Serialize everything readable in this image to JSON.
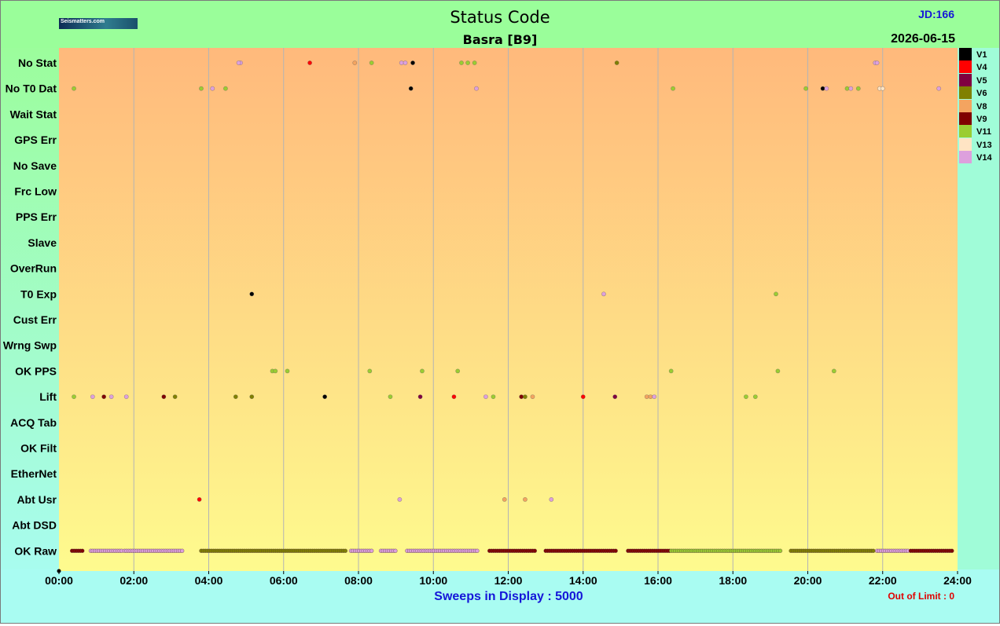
{
  "header": {
    "title": "Status Code",
    "subtitle": "Basra  [B9]",
    "jd": "JD:166",
    "date": "2026-06-15",
    "logo_text": "Seismatters.com"
  },
  "footer": {
    "sweeps": "Sweeps in Display : 5000",
    "out_of_limit": "Out of Limit : 0"
  },
  "colors": {
    "plot_top": "#ffb97c",
    "plot_bottom": "#fefb8e",
    "grid": "#b4b4b4",
    "header_bg": "#9afe9a",
    "footer_bg": "#a9fcf2"
  },
  "chart_data": {
    "type": "scatter",
    "title": "Status Code",
    "subtitle": "Basra  [B9]",
    "x_unit": "hours",
    "xlim": [
      0,
      24
    ],
    "xticks": [
      "00:00",
      "02:00",
      "04:00",
      "06:00",
      "08:00",
      "10:00",
      "12:00",
      "14:00",
      "16:00",
      "18:00",
      "20:00",
      "22:00",
      "24:00"
    ],
    "grid": true,
    "legend": "right",
    "categories": [
      "No Stat",
      "No T0 Dat",
      "Wait Stat",
      "GPS Err",
      "No Save",
      "Frc Low",
      "PPS Err",
      "Slave",
      "OverRun",
      "T0 Exp",
      "Cust Err",
      "Wrng Swp",
      "OK PPS",
      "Lift",
      "ACQ Tab",
      "OK Filt",
      "EtherNet",
      "Abt Usr",
      "Abt DSD",
      "OK Raw"
    ],
    "series": [
      {
        "name": "V1",
        "color": "#000000"
      },
      {
        "name": "V4",
        "color": "#ff0000"
      },
      {
        "name": "V5",
        "color": "#800040"
      },
      {
        "name": "V6",
        "color": "#808000"
      },
      {
        "name": "V8",
        "color": "#f4a460"
      },
      {
        "name": "V9",
        "color": "#800000"
      },
      {
        "name": "V11",
        "color": "#9acd32"
      },
      {
        "name": "V13",
        "color": "#ffe4c4"
      },
      {
        "name": "V14",
        "color": "#dda0dd"
      }
    ],
    "points": [
      {
        "cat": "No Stat",
        "t": 4.85,
        "s": "V14"
      },
      {
        "cat": "No Stat",
        "t": 4.8,
        "s": "V14"
      },
      {
        "cat": "No Stat",
        "t": 6.7,
        "s": "V4"
      },
      {
        "cat": "No Stat",
        "t": 7.9,
        "s": "V8"
      },
      {
        "cat": "No Stat",
        "t": 8.35,
        "s": "V11"
      },
      {
        "cat": "No Stat",
        "t": 9.15,
        "s": "V14"
      },
      {
        "cat": "No Stat",
        "t": 9.25,
        "s": "V14"
      },
      {
        "cat": "No Stat",
        "t": 9.45,
        "s": "V1"
      },
      {
        "cat": "No Stat",
        "t": 10.75,
        "s": "V11"
      },
      {
        "cat": "No Stat",
        "t": 10.92,
        "s": "V11"
      },
      {
        "cat": "No Stat",
        "t": 11.1,
        "s": "V11"
      },
      {
        "cat": "No Stat",
        "t": 14.9,
        "s": "V6"
      },
      {
        "cat": "No Stat",
        "t": 21.8,
        "s": "V14"
      },
      {
        "cat": "No Stat",
        "t": 21.85,
        "s": "V14"
      },
      {
        "cat": "No T0 Dat",
        "t": 0.4,
        "s": "V11"
      },
      {
        "cat": "No T0 Dat",
        "t": 3.8,
        "s": "V11"
      },
      {
        "cat": "No T0 Dat",
        "t": 4.1,
        "s": "V14"
      },
      {
        "cat": "No T0 Dat",
        "t": 4.45,
        "s": "V11"
      },
      {
        "cat": "No T0 Dat",
        "t": 9.4,
        "s": "V1"
      },
      {
        "cat": "No T0 Dat",
        "t": 11.15,
        "s": "V14"
      },
      {
        "cat": "No T0 Dat",
        "t": 16.4,
        "s": "V11"
      },
      {
        "cat": "No T0 Dat",
        "t": 19.95,
        "s": "V11"
      },
      {
        "cat": "No T0 Dat",
        "t": 20.4,
        "s": "V1"
      },
      {
        "cat": "No T0 Dat",
        "t": 20.5,
        "s": "V14"
      },
      {
        "cat": "No T0 Dat",
        "t": 21.05,
        "s": "V11"
      },
      {
        "cat": "No T0 Dat",
        "t": 21.15,
        "s": "V14"
      },
      {
        "cat": "No T0 Dat",
        "t": 21.35,
        "s": "V11"
      },
      {
        "cat": "No T0 Dat",
        "t": 21.92,
        "s": "V13"
      },
      {
        "cat": "No T0 Dat",
        "t": 22.0,
        "s": "V13"
      },
      {
        "cat": "No T0 Dat",
        "t": 23.5,
        "s": "V14"
      },
      {
        "cat": "T0 Exp",
        "t": 5.15,
        "s": "V1"
      },
      {
        "cat": "T0 Exp",
        "t": 14.55,
        "s": "V14"
      },
      {
        "cat": "T0 Exp",
        "t": 19.15,
        "s": "V11"
      },
      {
        "cat": "OK PPS",
        "t": 5.7,
        "s": "V11"
      },
      {
        "cat": "OK PPS",
        "t": 5.78,
        "s": "V11"
      },
      {
        "cat": "OK PPS",
        "t": 6.1,
        "s": "V11"
      },
      {
        "cat": "OK PPS",
        "t": 8.3,
        "s": "V11"
      },
      {
        "cat": "OK PPS",
        "t": 9.7,
        "s": "V11"
      },
      {
        "cat": "OK PPS",
        "t": 10.65,
        "s": "V11"
      },
      {
        "cat": "OK PPS",
        "t": 16.35,
        "s": "V11"
      },
      {
        "cat": "OK PPS",
        "t": 19.2,
        "s": "V11"
      },
      {
        "cat": "OK PPS",
        "t": 20.7,
        "s": "V11"
      },
      {
        "cat": "Lift",
        "t": 0.4,
        "s": "V11"
      },
      {
        "cat": "Lift",
        "t": 0.9,
        "s": "V14"
      },
      {
        "cat": "Lift",
        "t": 1.2,
        "s": "V9"
      },
      {
        "cat": "Lift",
        "t": 1.4,
        "s": "V14"
      },
      {
        "cat": "Lift",
        "t": 1.8,
        "s": "V14"
      },
      {
        "cat": "Lift",
        "t": 2.8,
        "s": "V9"
      },
      {
        "cat": "Lift",
        "t": 3.1,
        "s": "V6"
      },
      {
        "cat": "Lift",
        "t": 4.72,
        "s": "V6"
      },
      {
        "cat": "Lift",
        "t": 5.15,
        "s": "V6"
      },
      {
        "cat": "Lift",
        "t": 7.1,
        "s": "V1"
      },
      {
        "cat": "Lift",
        "t": 8.85,
        "s": "V11"
      },
      {
        "cat": "Lift",
        "t": 9.65,
        "s": "V5"
      },
      {
        "cat": "Lift",
        "t": 10.55,
        "s": "V4"
      },
      {
        "cat": "Lift",
        "t": 11.4,
        "s": "V14"
      },
      {
        "cat": "Lift",
        "t": 11.6,
        "s": "V11"
      },
      {
        "cat": "Lift",
        "t": 12.35,
        "s": "V9"
      },
      {
        "cat": "Lift",
        "t": 12.45,
        "s": "V6"
      },
      {
        "cat": "Lift",
        "t": 12.65,
        "s": "V8"
      },
      {
        "cat": "Lift",
        "t": 14.0,
        "s": "V4"
      },
      {
        "cat": "Lift",
        "t": 14.85,
        "s": "V5"
      },
      {
        "cat": "Lift",
        "t": 15.7,
        "s": "V8"
      },
      {
        "cat": "Lift",
        "t": 15.8,
        "s": "V8"
      },
      {
        "cat": "Lift",
        "t": 15.9,
        "s": "V14"
      },
      {
        "cat": "Lift",
        "t": 18.35,
        "s": "V11"
      },
      {
        "cat": "Lift",
        "t": 18.6,
        "s": "V11"
      },
      {
        "cat": "Abt Usr",
        "t": 3.75,
        "s": "V4"
      },
      {
        "cat": "Abt Usr",
        "t": 9.1,
        "s": "V14"
      },
      {
        "cat": "Abt Usr",
        "t": 11.9,
        "s": "V8"
      },
      {
        "cat": "Abt Usr",
        "t": 12.45,
        "s": "V8"
      },
      {
        "cat": "Abt Usr",
        "t": 13.15,
        "s": "V14"
      }
    ],
    "ok_raw_bands": [
      {
        "from": 0.35,
        "to": 0.65,
        "s": "V9"
      },
      {
        "from": 0.85,
        "to": 1.7,
        "s": "V14"
      },
      {
        "from": 1.75,
        "to": 3.3,
        "s": "V14"
      },
      {
        "from": 3.8,
        "to": 7.7,
        "s": "V6"
      },
      {
        "from": 7.8,
        "to": 8.4,
        "s": "V14"
      },
      {
        "from": 8.6,
        "to": 9.0,
        "s": "V14"
      },
      {
        "from": 9.3,
        "to": 11.2,
        "s": "V14"
      },
      {
        "from": 11.5,
        "to": 12.75,
        "s": "V9"
      },
      {
        "from": 13.0,
        "to": 14.9,
        "s": "V9"
      },
      {
        "from": 15.2,
        "to": 16.3,
        "s": "V9"
      },
      {
        "from": 16.35,
        "to": 19.3,
        "s": "V11"
      },
      {
        "from": 19.55,
        "to": 21.8,
        "s": "V6"
      },
      {
        "from": 21.85,
        "to": 22.7,
        "s": "V14"
      },
      {
        "from": 22.75,
        "to": 23.9,
        "s": "V9"
      }
    ]
  }
}
